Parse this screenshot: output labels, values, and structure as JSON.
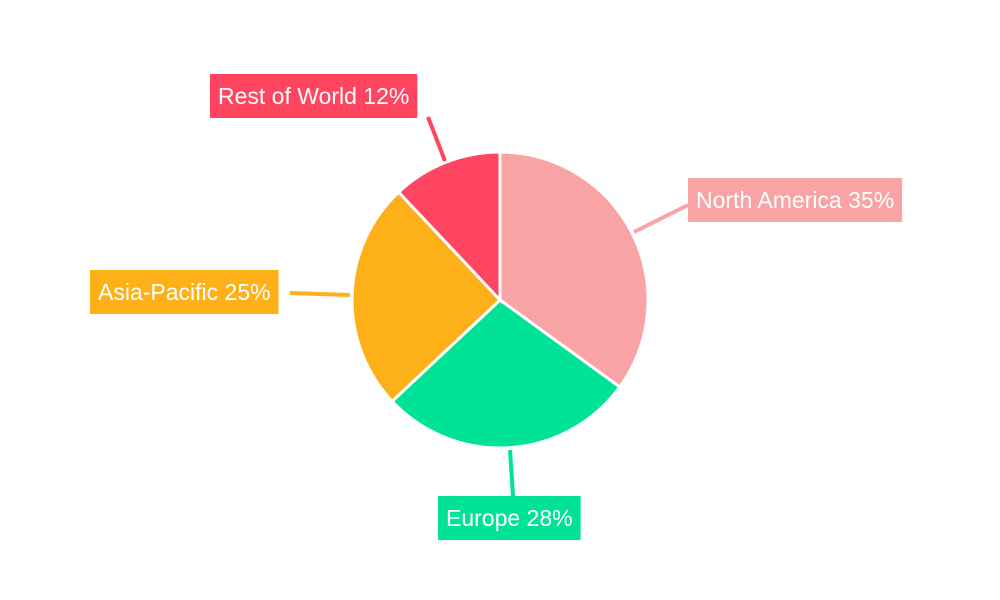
{
  "chart_data": {
    "type": "pie",
    "title": "",
    "slices": [
      {
        "name": "North America",
        "value": 35,
        "color": "#F9A3A4"
      },
      {
        "name": "Europe",
        "value": 28,
        "color": "#00E396"
      },
      {
        "name": "Asia-Pacific",
        "value": 25,
        "color": "#FEB019"
      },
      {
        "name": "Rest of World",
        "value": 12,
        "color": "#FF4560"
      }
    ],
    "start_angle": "top",
    "direction": "clockwise",
    "labels": "outside boxes with leader lines"
  }
}
